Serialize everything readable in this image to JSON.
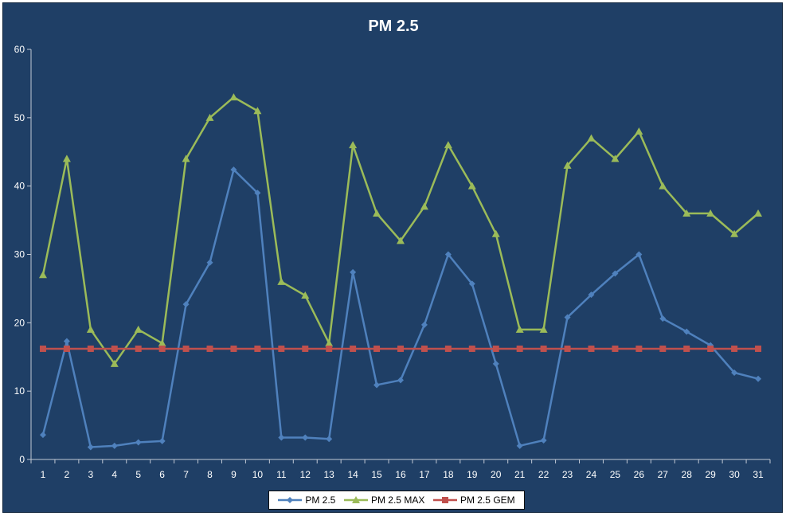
{
  "chart_data": {
    "type": "line",
    "title": "PM 2.5",
    "xlabel": "",
    "ylabel": "",
    "ylim": [
      0,
      60
    ],
    "y_ticks": [
      0,
      10,
      20,
      30,
      40,
      50,
      60
    ],
    "grid": false,
    "legend_position": "bottom",
    "categories": [
      "1",
      "2",
      "3",
      "4",
      "5",
      "6",
      "7",
      "8",
      "9",
      "10",
      "11",
      "12",
      "13",
      "14",
      "15",
      "16",
      "17",
      "18",
      "19",
      "20",
      "21",
      "22",
      "23",
      "24",
      "25",
      "26",
      "27",
      "28",
      "29",
      "30",
      "31"
    ],
    "series": [
      {
        "name": "PM 2.5",
        "color": "#4f81bd",
        "marker": "diamond",
        "values": [
          3.6,
          17.3,
          1.8,
          2.0,
          2.5,
          2.7,
          22.7,
          28.8,
          42.4,
          39.0,
          3.2,
          3.2,
          3.0,
          27.4,
          10.9,
          11.6,
          19.7,
          30.0,
          25.7,
          14.0,
          2.0,
          2.8,
          20.8,
          24.1,
          27.2,
          30.0,
          20.6,
          18.7,
          16.7,
          12.7,
          11.8
        ]
      },
      {
        "name": "PM 2.5 MAX",
        "color": "#9bbb59",
        "marker": "triangle",
        "values": [
          27,
          44,
          19,
          14,
          19,
          17,
          44,
          50,
          53,
          51,
          26,
          24,
          17,
          46,
          36,
          32,
          37,
          46,
          40,
          33,
          19,
          19,
          43,
          47,
          44,
          48,
          40,
          36,
          36,
          33,
          36
        ]
      },
      {
        "name": "PM 2.5 GEM",
        "color": "#c0504d",
        "marker": "square",
        "values": [
          16.2,
          16.2,
          16.2,
          16.2,
          16.2,
          16.2,
          16.2,
          16.2,
          16.2,
          16.2,
          16.2,
          16.2,
          16.2,
          16.2,
          16.2,
          16.2,
          16.2,
          16.2,
          16.2,
          16.2,
          16.2,
          16.2,
          16.2,
          16.2,
          16.2,
          16.2,
          16.2,
          16.2,
          16.2,
          16.2,
          16.2
        ]
      }
    ]
  }
}
